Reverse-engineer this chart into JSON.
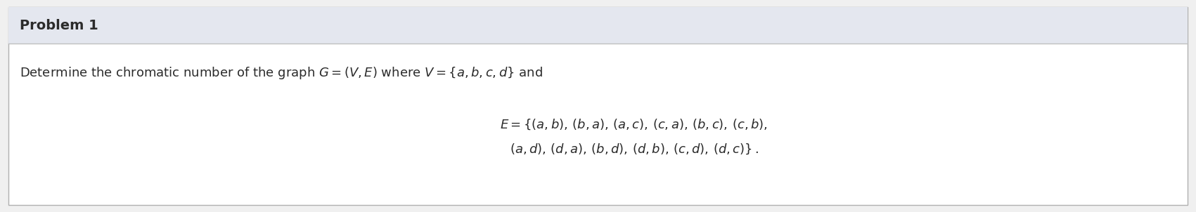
{
  "background_color": "#ffffff",
  "outer_bg": "#f0f0f0",
  "header_bg_color": "#e4e7ef",
  "header_text": "Problem 1",
  "header_text_color": "#2b2b2b",
  "header_font_size": 14,
  "body_line1": "Determine the chromatic number of the graph $G = (V, E)$ where $V = \\{a, b, c, d\\}$ and",
  "body_line1_fontsize": 13,
  "eq_line1": "$E = \\{(a, b),\\, (b, a),\\, (a, c),\\, (c, a),\\, (b, c),\\, (c, b),$",
  "eq_line2": "$(a, d),\\, (d, a),\\, (b, d),\\, (d, b),\\, (c, d),\\, (d, c)\\}\\,.$",
  "eq_fontsize": 13,
  "border_color": "#b0b0b0",
  "header_border_color": "#c0c0c0",
  "figsize": [
    17.01,
    3.02
  ],
  "dpi": 100
}
